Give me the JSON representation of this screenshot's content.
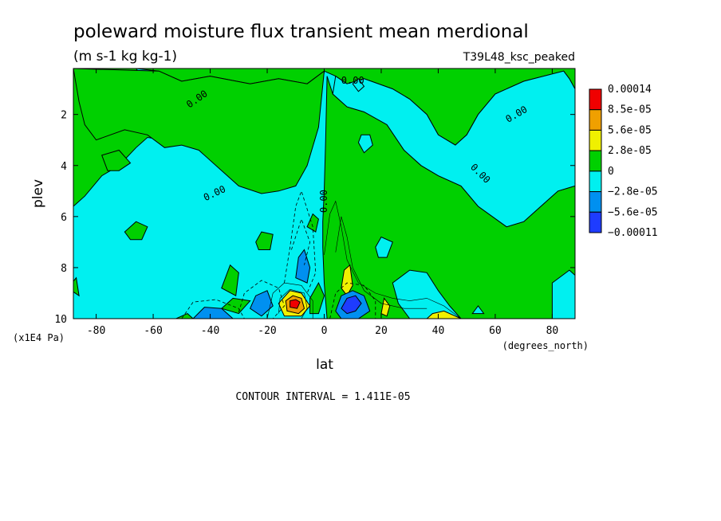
{
  "chart_data": {
    "type": "heatmap",
    "title": "poleward moisture flux transient mean merdional",
    "units": "(m s-1 kg kg-1)",
    "run_name": "T39L48_ksc_peaked",
    "xlabel": "lat",
    "x_units": "(degrees_north)",
    "ylabel": "plev",
    "y_units": "(x1E4 Pa)",
    "xlim": [
      -88,
      88
    ],
    "ylim": [
      10,
      0.2
    ],
    "x_ticks": [
      "-80",
      "-60",
      "-40",
      "-20",
      "0",
      "20",
      "40",
      "60",
      "80"
    ],
    "y_ticks": [
      "2",
      "4",
      "6",
      "8",
      "10"
    ],
    "contour_interval_text": "CONTOUR INTERVAL = 1.411E-05",
    "zero_contour_label": "0.00",
    "colorbar": {
      "labels": [
        "0.00014",
        "8.5e-05",
        "5.6e-05",
        "2.8e-05",
        "0",
        "−2.8e-05",
        "−5.6e-05",
        "−0.00011"
      ],
      "colors": [
        "#f00000",
        "#f0a000",
        "#f0f000",
        "#00d000",
        "#00f0f0",
        "#0090f0",
        "#1e3cff"
      ]
    },
    "positive_regions_0_to_2.8e-05_lat_plev": [
      [
        [
          -88,
          0.2
        ],
        [
          88,
          0.2
        ],
        [
          88,
          1
        ],
        [
          86,
          0.6
        ],
        [
          84,
          0.3
        ],
        [
          70,
          0.7
        ],
        [
          60,
          1.2
        ],
        [
          54,
          2
        ],
        [
          50,
          2.8
        ],
        [
          46,
          3.2
        ],
        [
          40,
          2.8
        ],
        [
          36,
          2
        ],
        [
          30,
          1.4
        ],
        [
          24,
          1
        ],
        [
          14,
          0.6
        ],
        [
          8,
          0.8
        ],
        [
          4,
          0.5
        ],
        [
          0,
          0.3
        ],
        [
          -6,
          0.8
        ],
        [
          -16,
          0.6
        ],
        [
          -26,
          0.8
        ],
        [
          -40,
          0.5
        ],
        [
          -50,
          0.7
        ],
        [
          -58,
          0.3
        ],
        [
          -66,
          0.2
        ],
        [
          -88,
          0.2
        ]
      ],
      [
        [
          -88,
          0.2
        ],
        [
          -66,
          0.2
        ],
        [
          -62,
          0.8
        ],
        [
          -56,
          1.6
        ],
        [
          -50,
          2.4
        ],
        [
          -50,
          2.9
        ],
        [
          -56,
          3
        ],
        [
          -62,
          2.9
        ],
        [
          -66,
          3.3
        ],
        [
          -72,
          4
        ],
        [
          -78,
          4.4
        ],
        [
          -84,
          5.2
        ],
        [
          -88,
          5.6
        ]
      ],
      [
        [
          88,
          4.8
        ],
        [
          82,
          5
        ],
        [
          76,
          5.6
        ],
        [
          70,
          6.2
        ],
        [
          64,
          6.4
        ],
        [
          54,
          5.6
        ],
        [
          48,
          4.8
        ],
        [
          40,
          4.4
        ],
        [
          34,
          4
        ],
        [
          28,
          3.4
        ],
        [
          22,
          2.4
        ],
        [
          14,
          1.9
        ],
        [
          8,
          1.7
        ],
        [
          3,
          1.2
        ],
        [
          1,
          0.5
        ],
        [
          0.5,
          3
        ],
        [
          0,
          5
        ],
        [
          -0.5,
          6.2
        ],
        [
          -0.5,
          7.2
        ],
        [
          0,
          8.6
        ],
        [
          1,
          10
        ],
        [
          88,
          10
        ]
      ],
      [
        [
          -88,
          0.2
        ],
        [
          -86,
          1.5
        ],
        [
          -84,
          2.4
        ],
        [
          -80,
          3
        ],
        [
          -70,
          2.6
        ],
        [
          -62,
          2.8
        ],
        [
          -56,
          3.3
        ],
        [
          -50,
          3.2
        ],
        [
          -44,
          3.4
        ],
        [
          -38,
          4
        ],
        [
          -30,
          4.8
        ],
        [
          -22,
          5.1
        ],
        [
          -16,
          5
        ],
        [
          -10,
          4.8
        ],
        [
          -6,
          4
        ],
        [
          -2,
          2.5
        ],
        [
          0,
          0.3
        ],
        [
          -6,
          0.8
        ],
        [
          -16,
          0.6
        ],
        [
          -26,
          0.8
        ],
        [
          -40,
          0.5
        ],
        [
          -50,
          0.7
        ],
        [
          -58,
          0.3
        ]
      ]
    ],
    "yellow_regions_lat_plev": [
      [
        [
          -14,
          9.9
        ],
        [
          -16,
          9.4
        ],
        [
          -12,
          8.9
        ],
        [
          -8,
          9.0
        ],
        [
          -5,
          9.5
        ],
        [
          -8,
          9.9
        ]
      ],
      [
        [
          6,
          8.8
        ],
        [
          7,
          8.1
        ],
        [
          9,
          7.9
        ],
        [
          10,
          8.7
        ],
        [
          8,
          9.1
        ]
      ],
      [
        [
          20,
          9.8
        ],
        [
          21,
          9.2
        ],
        [
          23,
          9.5
        ],
        [
          22,
          9.9
        ]
      ],
      [
        [
          36,
          10
        ],
        [
          38,
          9.8
        ],
        [
          42,
          9.7
        ],
        [
          46,
          9.9
        ],
        [
          48,
          10
        ]
      ]
    ],
    "orange_regions_lat_plev": [
      [
        [
          -13,
          9.7
        ],
        [
          -13.5,
          9.3
        ],
        [
          -11,
          9.1
        ],
        [
          -8,
          9.2
        ],
        [
          -7,
          9.6
        ],
        [
          -9,
          9.8
        ]
      ]
    ],
    "red_regions_lat_plev": [
      [
        [
          -12,
          9.55
        ],
        [
          -12,
          9.3
        ],
        [
          -10,
          9.25
        ],
        [
          -8.5,
          9.35
        ],
        [
          -9.5,
          9.6
        ]
      ]
    ],
    "mid_blue_regions_lat_plev": [
      [
        [
          -46,
          10
        ],
        [
          -42,
          9.55
        ],
        [
          -36,
          9.6
        ],
        [
          -32,
          10
        ]
      ],
      [
        [
          -26,
          9.6
        ],
        [
          -24,
          9.1
        ],
        [
          -20,
          8.9
        ],
        [
          -18,
          9.5
        ],
        [
          -22,
          9.9
        ]
      ],
      [
        [
          -10,
          8.4
        ],
        [
          -9,
          7.6
        ],
        [
          -7,
          7.3
        ],
        [
          -5,
          8.0
        ],
        [
          -6,
          8.6
        ]
      ],
      [
        [
          4,
          9.7
        ],
        [
          6,
          9.1
        ],
        [
          10,
          8.9
        ],
        [
          14,
          9.1
        ],
        [
          16,
          9.7
        ],
        [
          12,
          10
        ],
        [
          6,
          10
        ]
      ]
    ],
    "dark_blue_regions_lat_plev": [
      [
        [
          6,
          9.6
        ],
        [
          8,
          9.2
        ],
        [
          11,
          9.1
        ],
        [
          13,
          9.4
        ],
        [
          11,
          9.7
        ],
        [
          8,
          9.8
        ]
      ]
    ],
    "cyan_islands_in_positive_lat_plev": [
      [
        [
          8,
          0.8
        ],
        [
          14,
          0.6
        ],
        [
          24,
          1
        ],
        [
          30,
          1.4
        ],
        [
          36,
          2
        ],
        [
          40,
          2.8
        ],
        [
          46,
          3.2
        ],
        [
          50,
          2.8
        ],
        [
          54,
          2
        ],
        [
          60,
          1.2
        ],
        [
          70,
          0.7
        ],
        [
          84,
          0.3
        ],
        [
          86,
          0.6
        ],
        [
          88,
          1
        ],
        [
          88,
          4.8
        ],
        [
          82,
          5
        ],
        [
          76,
          5.6
        ],
        [
          70,
          6.2
        ],
        [
          64,
          6.4
        ],
        [
          54,
          5.6
        ],
        [
          48,
          4.8
        ],
        [
          40,
          4.4
        ],
        [
          34,
          4
        ],
        [
          28,
          3.4
        ],
        [
          22,
          2.4
        ],
        [
          14,
          1.9
        ],
        [
          8,
          1.7
        ],
        [
          3,
          1.2
        ],
        [
          4,
          0.5
        ]
      ],
      [
        [
          10,
          0.8
        ],
        [
          12,
          0.6
        ],
        [
          14,
          0.9
        ],
        [
          12,
          1.1
        ]
      ],
      [
        [
          12,
          3.1
        ],
        [
          13,
          2.8
        ],
        [
          16,
          2.8
        ],
        [
          17,
          3.2
        ],
        [
          14,
          3.5
        ]
      ],
      [
        [
          80,
          8.6
        ],
        [
          86,
          8.1
        ],
        [
          88,
          8.3
        ],
        [
          88,
          10
        ],
        [
          80,
          10
        ]
      ],
      [
        [
          30,
          10
        ],
        [
          26,
          9.4
        ],
        [
          24,
          8.6
        ],
        [
          30,
          8.1
        ],
        [
          36,
          8.2
        ],
        [
          40,
          8.9
        ],
        [
          44,
          9.5
        ],
        [
          48,
          10
        ]
      ],
      [
        [
          18,
          7.2
        ],
        [
          20,
          6.8
        ],
        [
          24,
          7
        ],
        [
          22,
          7.6
        ],
        [
          19,
          7.6
        ]
      ],
      [
        [
          52,
          9.8
        ],
        [
          54,
          9.5
        ],
        [
          56,
          9.8
        ]
      ]
    ],
    "green_islands_in_negative_lat_plev": [
      [
        [
          -78,
          3.6
        ],
        [
          -72,
          3.4
        ],
        [
          -68,
          3.9
        ],
        [
          -72,
          4.2
        ],
        [
          -76,
          4.2
        ]
      ],
      [
        [
          -24,
          7.0
        ],
        [
          -22,
          6.6
        ],
        [
          -18,
          6.7
        ],
        [
          -19,
          7.3
        ],
        [
          -23,
          7.3
        ]
      ],
      [
        [
          -36,
          9.6
        ],
        [
          -32,
          9.2
        ],
        [
          -26,
          9.3
        ],
        [
          -30,
          9.8
        ]
      ],
      [
        [
          -70,
          6.6
        ],
        [
          -66,
          6.2
        ],
        [
          -62,
          6.4
        ],
        [
          -64,
          6.9
        ],
        [
          -68,
          6.9
        ]
      ],
      [
        [
          -36,
          8.8
        ],
        [
          -33,
          7.9
        ],
        [
          -30,
          8.2
        ],
        [
          -31,
          9.1
        ]
      ],
      [
        [
          -52,
          10
        ],
        [
          -48,
          9.8
        ],
        [
          -46,
          10
        ]
      ],
      [
        [
          -90,
          8.8
        ],
        [
          -87,
          8.4
        ],
        [
          -86,
          9.1
        ]
      ],
      [
        [
          -5,
          9.2
        ],
        [
          -2,
          8.6
        ],
        [
          0,
          9.1
        ],
        [
          -2,
          9.8
        ],
        [
          -5,
          9.8
        ]
      ],
      [
        [
          -6,
          6.4
        ],
        [
          -4,
          5.9
        ],
        [
          -2,
          6.1
        ],
        [
          -3,
          6.6
        ]
      ]
    ],
    "dashed_contours_lat_plev": [
      [
        [
          -50,
          10
        ],
        [
          -46,
          9.35
        ],
        [
          -38,
          9.25
        ],
        [
          -30,
          9.6
        ],
        [
          -28,
          10
        ]
      ],
      [
        [
          -30,
          9.75
        ],
        [
          -28,
          9.0
        ],
        [
          -22,
          8.5
        ],
        [
          -16,
          8.8
        ],
        [
          -14,
          9.5
        ],
        [
          -18,
          10
        ]
      ],
      [
        [
          -14,
          8.6
        ],
        [
          -12,
          7.2
        ],
        [
          -10,
          5.6
        ],
        [
          -8,
          5.0
        ],
        [
          -4,
          6.4
        ],
        [
          -3,
          8.2
        ],
        [
          -6,
          9.0
        ]
      ],
      [
        [
          2,
          10
        ],
        [
          4,
          9.0
        ],
        [
          8,
          8.6
        ],
        [
          14,
          8.7
        ],
        [
          18,
          9.3
        ],
        [
          18,
          10
        ]
      ],
      [
        [
          -11.5,
          7.3
        ],
        [
          -8,
          6.1
        ],
        [
          -5,
          7.0
        ],
        [
          -7,
          7.9
        ]
      ]
    ],
    "solid_contours_lat_plev": [
      [
        [
          0,
          7.5
        ],
        [
          2,
          5.9
        ],
        [
          4,
          5.4
        ],
        [
          6,
          6.4
        ],
        [
          8,
          7.7
        ],
        [
          12,
          8.6
        ],
        [
          18,
          9.0
        ],
        [
          24,
          9.2
        ],
        [
          30,
          9.3
        ],
        [
          36,
          9.2
        ],
        [
          42,
          9.5
        ],
        [
          48,
          10
        ]
      ],
      [
        [
          4,
          7.4
        ],
        [
          6,
          6.0
        ],
        [
          8,
          6.8
        ],
        [
          10,
          8.0
        ],
        [
          14,
          8.9
        ],
        [
          20,
          9.4
        ],
        [
          28,
          9.6
        ],
        [
          36,
          9.6
        ]
      ],
      [
        [
          -20,
          10
        ],
        [
          -18,
          9.0
        ],
        [
          -14,
          8.6
        ],
        [
          -8,
          8.7
        ],
        [
          -4,
          9.3
        ],
        [
          -4,
          10
        ]
      ],
      [
        [
          -16,
          9.8
        ],
        [
          -15.5,
          9.2
        ],
        [
          -12,
          8.85
        ],
        [
          -7,
          9.0
        ],
        [
          -6,
          9.6
        ],
        [
          -8,
          10
        ]
      ]
    ],
    "zero_label_positions_lat_plev": [
      [
        10,
        0.8
      ],
      [
        -44,
        1.5
      ],
      [
        68,
        2.1
      ],
      [
        -38,
        5.2
      ],
      [
        54,
        4.4
      ],
      [
        1,
        5.4
      ]
    ],
    "zero_label_rotations": [
      0,
      -35,
      -30,
      -25,
      45,
      -90
    ]
  }
}
